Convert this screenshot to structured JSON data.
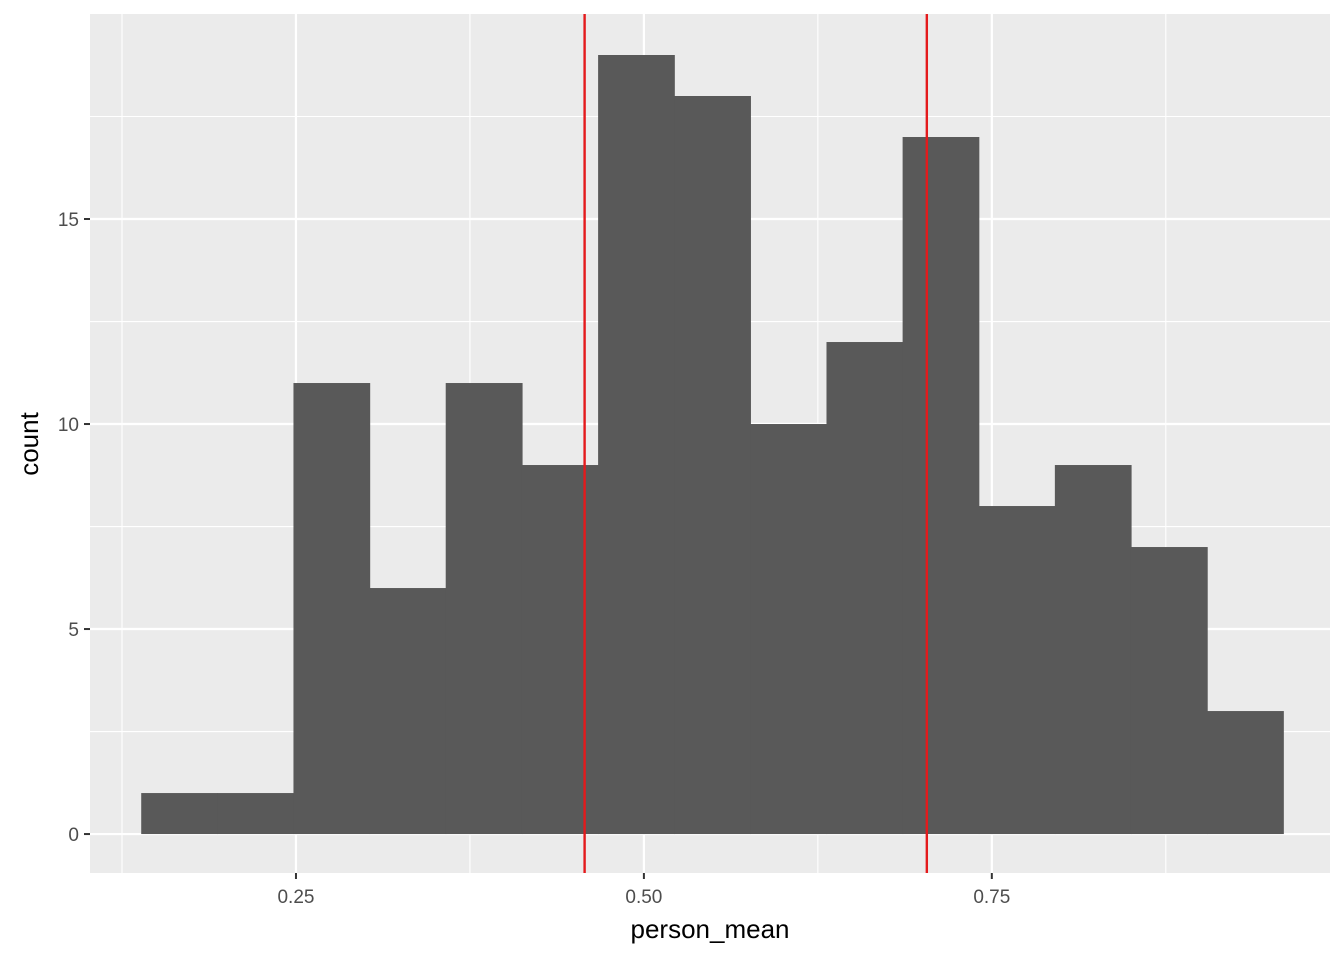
{
  "chart_data": {
    "type": "bar",
    "title": "",
    "xlabel": "person_mean",
    "ylabel": "count",
    "xlim": [
      0.102,
      0.993
    ],
    "ylim": [
      -0.95,
      20
    ],
    "grid": true,
    "x_ticks": [
      {
        "value": 0.25,
        "label": "0.25"
      },
      {
        "value": 0.5,
        "label": "0.50"
      },
      {
        "value": 0.75,
        "label": "0.75"
      }
    ],
    "y_ticks": [
      {
        "value": 0,
        "label": "0"
      },
      {
        "value": 5,
        "label": "5"
      },
      {
        "value": 10,
        "label": "10"
      },
      {
        "value": 15,
        "label": "15"
      }
    ],
    "bins": [
      {
        "xmin": 0.1388,
        "xmax": 0.1935,
        "count": 1
      },
      {
        "xmin": 0.1935,
        "xmax": 0.2482,
        "count": 1
      },
      {
        "xmin": 0.2482,
        "xmax": 0.3029,
        "count": 11
      },
      {
        "xmin": 0.3029,
        "xmax": 0.3576,
        "count": 6
      },
      {
        "xmin": 0.3576,
        "xmax": 0.4124,
        "count": 11
      },
      {
        "xmin": 0.4124,
        "xmax": 0.4671,
        "count": 9
      },
      {
        "xmin": 0.4671,
        "xmax": 0.5218,
        "count": 19
      },
      {
        "xmin": 0.5218,
        "xmax": 0.5765,
        "count": 18
      },
      {
        "xmin": 0.5765,
        "xmax": 0.6312,
        "count": 10
      },
      {
        "xmin": 0.6312,
        "xmax": 0.6859,
        "count": 12
      },
      {
        "xmin": 0.6859,
        "xmax": 0.7406,
        "count": 17
      },
      {
        "xmin": 0.7406,
        "xmax": 0.7953,
        "count": 8
      },
      {
        "xmin": 0.7953,
        "xmax": 0.85,
        "count": 9
      },
      {
        "xmin": 0.85,
        "xmax": 0.9047,
        "count": 7
      },
      {
        "xmin": 0.9047,
        "xmax": 0.9594,
        "count": 3
      }
    ],
    "vlines": [
      {
        "x": 0.4574,
        "color": "#e41a1c"
      },
      {
        "x": 0.7033,
        "color": "#e41a1c"
      }
    ],
    "colors": {
      "bar": "#595959",
      "panel": "#ebebeb",
      "grid": "#ffffff",
      "tick": "#333333"
    }
  }
}
